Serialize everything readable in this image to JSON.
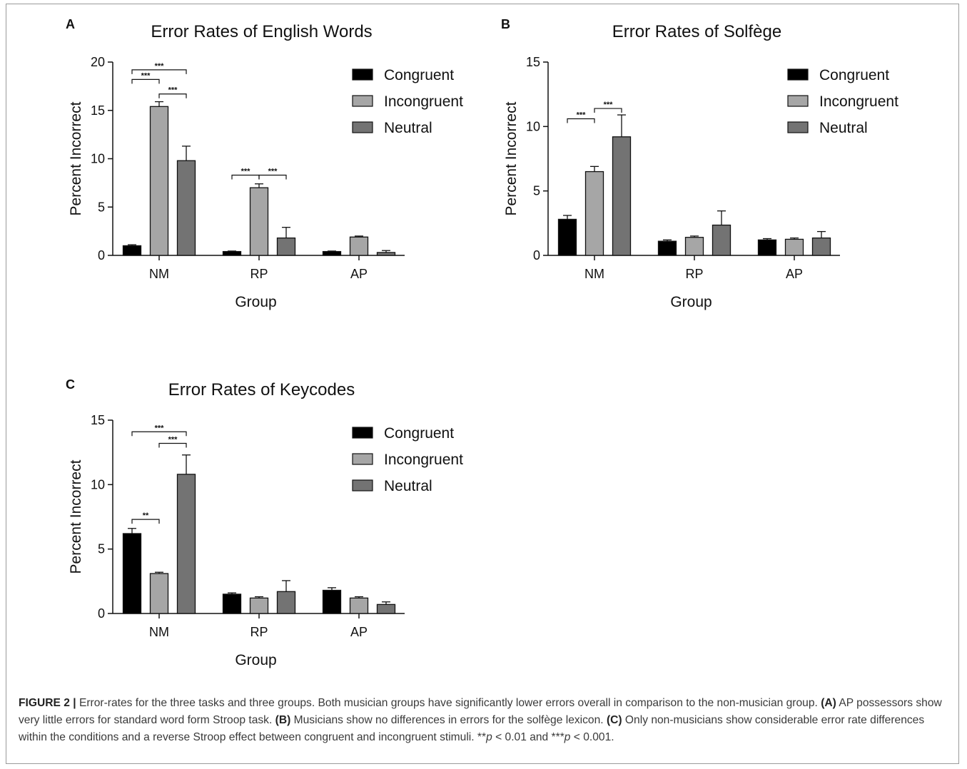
{
  "figure": {
    "caption_label": "FIGURE 2 |",
    "caption_intro": " Error-rates for the three tasks and three groups. Both musician groups have significantly lower errors overall in comparison to the non-musician group. ",
    "part_a_label": "(A)",
    "part_a_text": " AP possessors show very little errors for standard word form Stroop task. ",
    "part_b_label": "(B)",
    "part_b_text": " Musicians show no differences in errors for the solfège lexicon. ",
    "part_c_label": "(C)",
    "part_c_text": " Only non-musicians show considerable error rate differences within the conditions and a reverse Stroop effect between congruent and incongruent stimuli. **",
    "p_symbol_1": "p",
    "p_threshold_1": " < 0.01 and ***",
    "p_symbol_2": "p",
    "p_threshold_2": " < 0.001."
  },
  "chart_data": [
    {
      "panel": "A",
      "type": "bar",
      "title": "Error Rates of English Words",
      "xlabel": "Group",
      "ylabel": "Percent Incorrect",
      "ylim": [
        0,
        20
      ],
      "yticks": [
        0,
        5,
        10,
        15,
        20
      ],
      "categories": [
        "NM",
        "RP",
        "AP"
      ],
      "legend_position": "top-right",
      "series": [
        {
          "name": "Congruent",
          "color": "#000000",
          "values": [
            1.0,
            0.4,
            0.4
          ],
          "errors": [
            0.1,
            0.05,
            0.05
          ]
        },
        {
          "name": "Incongruent",
          "color": "#a6a6a6",
          "values": [
            15.4,
            7.0,
            1.9
          ],
          "errors": [
            0.5,
            0.4,
            0.1
          ]
        },
        {
          "name": "Neutral",
          "color": "#737373",
          "values": [
            9.8,
            1.8,
            0.3
          ],
          "errors": [
            1.5,
            1.1,
            0.2
          ]
        }
      ],
      "significance": [
        {
          "group": "NM",
          "from": "Congruent",
          "to": "Neutral",
          "label": "***",
          "at": 19.2
        },
        {
          "group": "NM",
          "from": "Congruent",
          "to": "Incongruent",
          "label": "***",
          "at": 18.2
        },
        {
          "group": "NM",
          "from": "Incongruent",
          "to": "Neutral",
          "label": "***",
          "at": 16.7
        },
        {
          "group": "RP",
          "from": "Congruent",
          "to": "Incongruent",
          "label": "***",
          "at": 8.3
        },
        {
          "group": "RP",
          "from": "Incongruent",
          "to": "Neutral",
          "label": "***",
          "at": 8.3
        }
      ]
    },
    {
      "panel": "B",
      "type": "bar",
      "title": "Error Rates of Solfège",
      "xlabel": "Group",
      "ylabel": "Percent Incorrect",
      "ylim": [
        0,
        15
      ],
      "yticks": [
        0,
        5,
        10,
        15
      ],
      "categories": [
        "NM",
        "RP",
        "AP"
      ],
      "legend_position": "top-right",
      "series": [
        {
          "name": "Congruent",
          "color": "#000000",
          "values": [
            2.8,
            1.1,
            1.2
          ],
          "errors": [
            0.3,
            0.1,
            0.1
          ]
        },
        {
          "name": "Incongruent",
          "color": "#a6a6a6",
          "values": [
            6.5,
            1.4,
            1.25
          ],
          "errors": [
            0.4,
            0.1,
            0.1
          ]
        },
        {
          "name": "Neutral",
          "color": "#737373",
          "values": [
            9.2,
            2.35,
            1.35
          ],
          "errors": [
            1.7,
            1.1,
            0.5
          ]
        }
      ],
      "significance": [
        {
          "group": "NM",
          "from": "Congruent",
          "to": "Incongruent",
          "label": "***",
          "at": 10.6
        },
        {
          "group": "NM",
          "from": "Incongruent",
          "to": "Neutral",
          "label": "***",
          "at": 11.4
        }
      ]
    },
    {
      "panel": "C",
      "type": "bar",
      "title": "Error Rates of Keycodes",
      "xlabel": "Group",
      "ylabel": "Percent Incorrect",
      "ylim": [
        0,
        15
      ],
      "yticks": [
        0,
        5,
        10,
        15
      ],
      "categories": [
        "NM",
        "RP",
        "AP"
      ],
      "legend_position": "top-right",
      "series": [
        {
          "name": "Congruent",
          "color": "#000000",
          "values": [
            6.2,
            1.5,
            1.8
          ],
          "errors": [
            0.4,
            0.1,
            0.2
          ]
        },
        {
          "name": "Incongruent",
          "color": "#a6a6a6",
          "values": [
            3.1,
            1.2,
            1.2
          ],
          "errors": [
            0.1,
            0.1,
            0.1
          ]
        },
        {
          "name": "Neutral",
          "color": "#737373",
          "values": [
            10.8,
            1.7,
            0.7
          ],
          "errors": [
            1.5,
            0.85,
            0.2
          ]
        }
      ],
      "significance": [
        {
          "group": "NM",
          "from": "Congruent",
          "to": "Neutral",
          "label": "***",
          "at": 14.1
        },
        {
          "group": "NM",
          "from": "Incongruent",
          "to": "Neutral",
          "label": "***",
          "at": 13.2
        },
        {
          "group": "NM",
          "from": "Congruent",
          "to": "Incongruent",
          "label": "**",
          "at": 7.3
        }
      ]
    }
  ]
}
